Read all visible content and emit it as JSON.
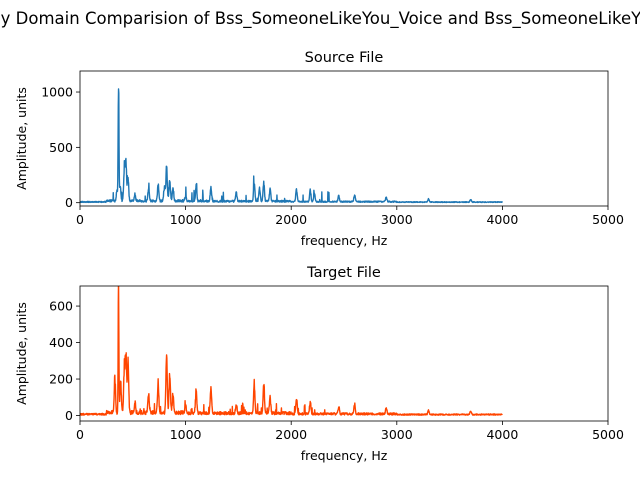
{
  "figure": {
    "suptitle": "Frequency Domain Comparision of Bss_SomeoneLikeYou_Voice and Bss_SomeoneLikeYou_Music"
  },
  "chart_data": [
    {
      "type": "line",
      "title": "Source File",
      "xlabel": "frequency, Hz",
      "ylabel": "Amplitude, units",
      "xlim": [
        0,
        5000
      ],
      "ylim": [
        -30,
        1190
      ],
      "xticks": [
        "0",
        "1000",
        "2000",
        "3000",
        "4000",
        "5000"
      ],
      "yticks": [
        "0",
        "500",
        "1000"
      ],
      "grid": false,
      "color": "#1f77b4",
      "series": [
        {
          "peaks": [
            {
              "x": 350,
              "y": 90
            },
            {
              "x": 365,
              "y": 1140
            },
            {
              "x": 380,
              "y": 140
            },
            {
              "x": 420,
              "y": 300
            },
            {
              "x": 435,
              "y": 340
            },
            {
              "x": 455,
              "y": 200
            },
            {
              "x": 520,
              "y": 60
            },
            {
              "x": 650,
              "y": 110
            },
            {
              "x": 740,
              "y": 140
            },
            {
              "x": 800,
              "y": 120
            },
            {
              "x": 820,
              "y": 320
            },
            {
              "x": 850,
              "y": 190
            },
            {
              "x": 880,
              "y": 100
            },
            {
              "x": 1000,
              "y": 50
            },
            {
              "x": 1100,
              "y": 140
            },
            {
              "x": 1240,
              "y": 130
            },
            {
              "x": 1480,
              "y": 80
            },
            {
              "x": 1650,
              "y": 170
            },
            {
              "x": 1700,
              "y": 120
            },
            {
              "x": 1740,
              "y": 170
            },
            {
              "x": 1800,
              "y": 110
            },
            {
              "x": 2050,
              "y": 110
            },
            {
              "x": 2180,
              "y": 100
            },
            {
              "x": 2220,
              "y": 80
            },
            {
              "x": 2450,
              "y": 55
            },
            {
              "x": 2600,
              "y": 60
            },
            {
              "x": 2900,
              "y": 40
            },
            {
              "x": 3300,
              "y": 30
            },
            {
              "x": 3700,
              "y": 25
            }
          ],
          "x_end": 4000
        }
      ]
    },
    {
      "type": "line",
      "title": "Target File",
      "xlabel": "frequency, Hz",
      "ylabel": "Amplitude, units",
      "xlim": [
        0,
        5000
      ],
      "ylim": [
        -30,
        710
      ],
      "xticks": [
        "0",
        "1000",
        "2000",
        "3000",
        "4000",
        "5000"
      ],
      "yticks": [
        "0",
        "200",
        "400",
        "600"
      ],
      "grid": false,
      "color": "#ff4500",
      "series": [
        {
          "peaks": [
            {
              "x": 330,
              "y": 180
            },
            {
              "x": 365,
              "y": 680
            },
            {
              "x": 385,
              "y": 160
            },
            {
              "x": 420,
              "y": 240
            },
            {
              "x": 435,
              "y": 310
            },
            {
              "x": 455,
              "y": 260
            },
            {
              "x": 520,
              "y": 50
            },
            {
              "x": 650,
              "y": 110
            },
            {
              "x": 740,
              "y": 160
            },
            {
              "x": 820,
              "y": 300
            },
            {
              "x": 850,
              "y": 210
            },
            {
              "x": 880,
              "y": 100
            },
            {
              "x": 1000,
              "y": 45
            },
            {
              "x": 1100,
              "y": 120
            },
            {
              "x": 1240,
              "y": 140
            },
            {
              "x": 1480,
              "y": 50
            },
            {
              "x": 1650,
              "y": 160
            },
            {
              "x": 1740,
              "y": 150
            },
            {
              "x": 1800,
              "y": 90
            },
            {
              "x": 2050,
              "y": 85
            },
            {
              "x": 2180,
              "y": 70
            },
            {
              "x": 2450,
              "y": 40
            },
            {
              "x": 2600,
              "y": 55
            },
            {
              "x": 2900,
              "y": 30
            },
            {
              "x": 3300,
              "y": 22
            },
            {
              "x": 3700,
              "y": 18
            }
          ],
          "x_end": 4000
        }
      ]
    }
  ]
}
